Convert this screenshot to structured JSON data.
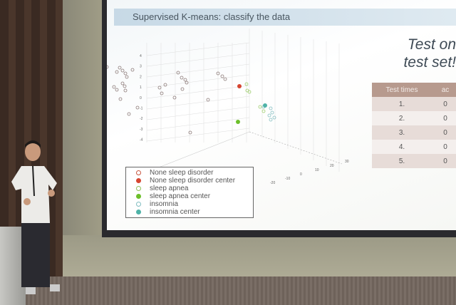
{
  "slide": {
    "title": "Supervised K-means: classify the data",
    "side_title_line1": "Test on",
    "side_title_line2": "test set!",
    "table": {
      "headers": [
        "Test times",
        "ac"
      ],
      "rows": [
        [
          "1.",
          "0"
        ],
        [
          "2.",
          "0"
        ],
        [
          "3.",
          "0"
        ],
        [
          "4.",
          "0"
        ],
        [
          "5.",
          "0"
        ]
      ]
    },
    "legend": [
      {
        "label": "None sleep disorder",
        "color": "#c8553f",
        "filled": false
      },
      {
        "label": "None sleep disorder center",
        "color": "#d64530",
        "filled": true
      },
      {
        "label": "sleep apnea",
        "color": "#8fbf5a",
        "filled": false
      },
      {
        "label": "sleep apnea center",
        "color": "#6cbf2a",
        "filled": true
      },
      {
        "label": "insomnia",
        "color": "#7fbcc0",
        "filled": false
      },
      {
        "label": "insomnia center",
        "color": "#4fb3a8",
        "filled": true
      }
    ],
    "z_ticks": [
      "4",
      "3",
      "2",
      "1",
      "0",
      "-1",
      "-2",
      "-3",
      "-4"
    ],
    "x_ticks": [
      "30",
      "20",
      "10",
      "0",
      "-10",
      "-20"
    ]
  }
}
